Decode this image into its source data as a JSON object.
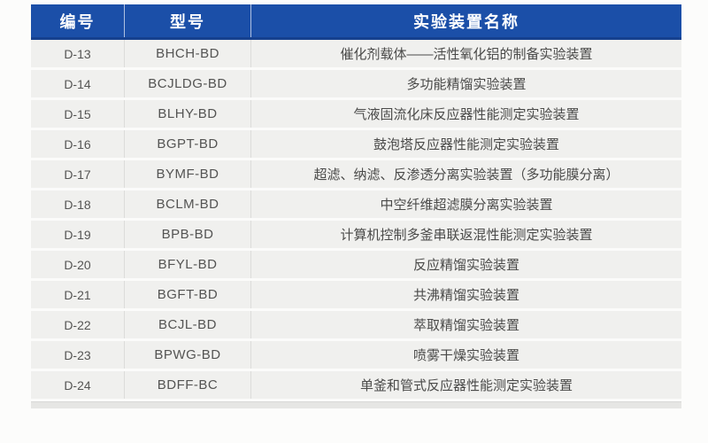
{
  "table": {
    "columns": [
      {
        "key": "id",
        "label": "编号"
      },
      {
        "key": "model",
        "label": "型号"
      },
      {
        "key": "name",
        "label": "实验装置名称"
      }
    ],
    "rows": [
      {
        "id": "D-13",
        "model": "BHCH-BD",
        "name": "催化剂载体——活性氧化铝的制备实验装置"
      },
      {
        "id": "D-14",
        "model": "BCJLDG-BD",
        "name": "多功能精馏实验装置"
      },
      {
        "id": "D-15",
        "model": "BLHY-BD",
        "name": "气液固流化床反应器性能测定实验装置"
      },
      {
        "id": "D-16",
        "model": "BGPT-BD",
        "name": "鼓泡塔反应器性能测定实验装置"
      },
      {
        "id": "D-17",
        "model": "BYMF-BD",
        "name": "超滤、纳滤、反渗透分离实验装置（多功能膜分离）"
      },
      {
        "id": "D-18",
        "model": "BCLM-BD",
        "name": "中空纤维超滤膜分离实验装置"
      },
      {
        "id": "D-19",
        "model": "BPB-BD",
        "name": "计算机控制多釜串联返混性能测定实验装置"
      },
      {
        "id": "D-20",
        "model": "BFYL-BD",
        "name": "反应精馏实验装置"
      },
      {
        "id": "D-21",
        "model": "BGFT-BD",
        "name": "共沸精馏实验装置"
      },
      {
        "id": "D-22",
        "model": "BCJL-BD",
        "name": "萃取精馏实验装置"
      },
      {
        "id": "D-23",
        "model": "BPWG-BD",
        "name": "喷雾干燥实验装置"
      },
      {
        "id": "D-24",
        "model": "BDFF-BC",
        "name": "单釜和管式反应器性能测定实验装置"
      }
    ]
  },
  "colors": {
    "header_bg": "#1b4fa8",
    "header_border": "#16418f",
    "header_text": "#ffffff",
    "row_bg": "#f0f0ee",
    "row_separator": "#fbfbfa",
    "column_divider": "#dcdcda",
    "row_text": "#4d4d4d"
  }
}
